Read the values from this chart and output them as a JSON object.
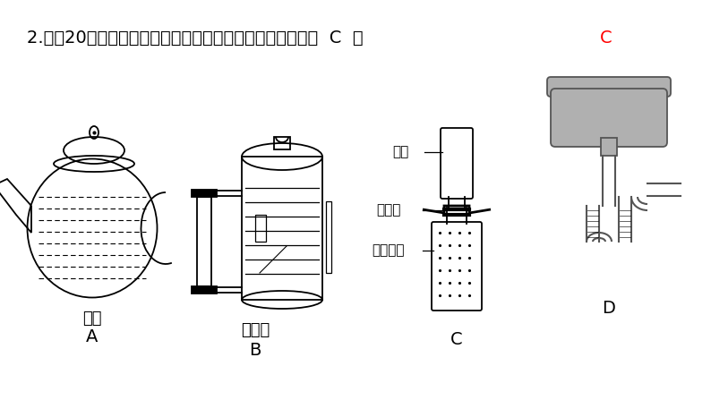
{
  "background_color": "#ffffff",
  "label_A": "A",
  "label_B": "B",
  "label_C": "C",
  "label_D": "D",
  "label_teapot": "茶壶",
  "label_water_gauge": "水位计",
  "label_air": "空气",
  "label_glass": "玻璃板",
  "label_no2": "二氧化氮",
  "fig_width": 7.94,
  "fig_height": 4.47,
  "dpi": 100
}
